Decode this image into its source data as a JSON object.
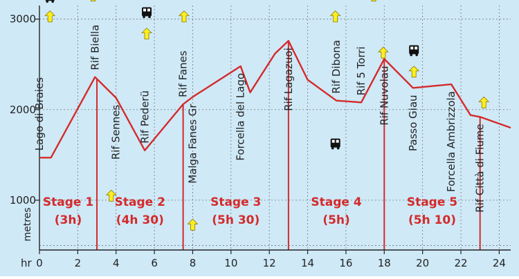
{
  "colors": {
    "background": "#cfe9f7",
    "profile": "#d42a2a",
    "stage_text": "#d42a2a",
    "grid": "#777777",
    "arrow_fill": "#ffee22",
    "bus": "#111111"
  },
  "chart_data": {
    "type": "line",
    "title": "",
    "xlabel": "hr",
    "ylabel": "metres",
    "xlim": [
      0,
      24.6
    ],
    "ylim": [
      450,
      3150
    ],
    "x_ticks": [
      0,
      2,
      4,
      6,
      8,
      10,
      12,
      14,
      16,
      18,
      20,
      22,
      24
    ],
    "x_tick_labels": [
      "0",
      "2",
      "4",
      "6",
      "8",
      "10",
      "12",
      "14",
      "16",
      "18",
      "20",
      "22",
      "24"
    ],
    "y_ticks": [
      1000,
      2000,
      3000
    ],
    "y_tick_labels": [
      "1000",
      "2000",
      "3000"
    ],
    "grid": "dotted",
    "series": [
      {
        "x": [
          0,
          0.6,
          2.9,
          4.0,
          5.5,
          7.5,
          8.0,
          10.5,
          11.0,
          12.3,
          13.0,
          14.0,
          15.5,
          16.8,
          18.0,
          19.5,
          21.5,
          22.5,
          23.0,
          24.6
        ],
        "y": [
          1470,
          1470,
          2360,
          2130,
          1550,
          2060,
          2140,
          2480,
          2190,
          2620,
          2760,
          2330,
          2100,
          2080,
          2560,
          2240,
          2280,
          1940,
          1920,
          1800
        ]
      }
    ],
    "stage_dividers": [
      3.0,
      7.5,
      13.0,
      18.0,
      23.0
    ],
    "stages": [
      {
        "name": "Stage 1",
        "duration": "(3h)",
        "x": 1.5
      },
      {
        "name": "Stage 2",
        "duration": "(4h 30)",
        "x": 5.25
      },
      {
        "name": "Stage 3",
        "duration": "(5h 30)",
        "x": 10.25
      },
      {
        "name": "Stage 4",
        "duration": "(5h)",
        "x": 15.5
      },
      {
        "name": "Stage 5",
        "duration": "(5h 10)",
        "x": 20.5
      }
    ],
    "places": [
      {
        "label": "Lago di Braies",
        "x": 0.0,
        "y": 1470,
        "pos": "above"
      },
      {
        "label": "Rif Biella",
        "x": 2.9,
        "y": 2360,
        "pos": "above"
      },
      {
        "label": "Rif Sennes",
        "x": 4.0,
        "y": 2130,
        "pos": "below"
      },
      {
        "label": "Rif Pederü",
        "x": 5.5,
        "y": 1550,
        "pos": "above"
      },
      {
        "label": "Rif Fanes",
        "x": 7.5,
        "y": 2060,
        "pos": "above"
      },
      {
        "label": "Malga Fanes Gr",
        "x": 8.0,
        "y": 2140,
        "pos": "below"
      },
      {
        "label": "Forcella del Lago",
        "x": 10.5,
        "y": 2480,
        "pos": "below"
      },
      {
        "label": "Rif Lagazuoi",
        "x": 13.0,
        "y": 2760,
        "pos": "below"
      },
      {
        "label": "Rif Dibona",
        "x": 15.5,
        "y": 2100,
        "pos": "above"
      },
      {
        "label": "Rif 5 Torri",
        "x": 16.8,
        "y": 2080,
        "pos": "above"
      },
      {
        "label": "Rif Nuvolau",
        "x": 18.0,
        "y": 2560,
        "pos": "below"
      },
      {
        "label": "Passo Giau",
        "x": 19.5,
        "y": 2240,
        "pos": "below"
      },
      {
        "label": "Forcella Ambrizzola",
        "x": 21.5,
        "y": 2280,
        "pos": "below"
      },
      {
        "label": "Rif Città di Fiume",
        "x": 23.0,
        "y": 1920,
        "pos": "below"
      }
    ],
    "arrows": [
      {
        "x": 0.55,
        "y": 3030
      },
      {
        "x": 2.8,
        "y": 3260
      },
      {
        "x": 3.75,
        "y": 1050
      },
      {
        "x": 5.6,
        "y": 2840
      },
      {
        "x": 7.55,
        "y": 3030
      },
      {
        "x": 8.0,
        "y": 730
      },
      {
        "x": 15.45,
        "y": 3030
      },
      {
        "x": 17.45,
        "y": 3260
      },
      {
        "x": 17.95,
        "y": 2630
      },
      {
        "x": 19.55,
        "y": 2420
      },
      {
        "x": 23.2,
        "y": 2080
      }
    ],
    "buses": [
      {
        "x": 0.55,
        "y": 3240
      },
      {
        "x": 5.6,
        "y": 3070
      },
      {
        "x": 15.45,
        "y": 1620
      },
      {
        "x": 19.55,
        "y": 2650
      }
    ]
  }
}
